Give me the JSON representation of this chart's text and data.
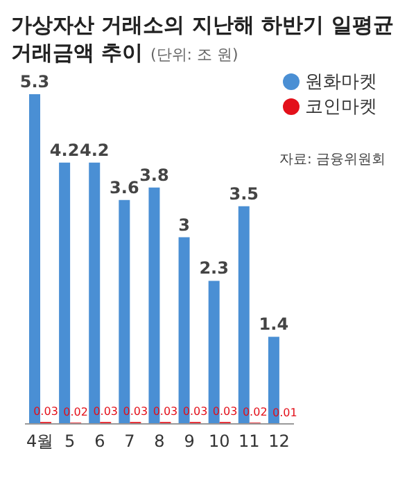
{
  "chart_data": {
    "type": "bar",
    "title": "가상자산 거래소의 지난해 하반기 일평균 거래금액 추이",
    "subtitle": "(단위: 조 원)",
    "categories": [
      "4월",
      "5",
      "6",
      "7",
      "8",
      "9",
      "10",
      "11",
      "12"
    ],
    "series": [
      {
        "name": "원화마켓",
        "color": "#4a8fd4",
        "values": [
          5.3,
          4.2,
          4.2,
          3.6,
          3.8,
          3.0,
          2.3,
          3.5,
          1.4
        ]
      },
      {
        "name": "코인마켓",
        "color": "#e3101a",
        "values": [
          0.03,
          0.02,
          0.03,
          0.03,
          0.03,
          0.03,
          0.03,
          0.02,
          0.01
        ]
      }
    ],
    "data_labels": true,
    "legend": "top right",
    "grid": false,
    "annotations": [
      "자료: 금융위원회"
    ]
  }
}
